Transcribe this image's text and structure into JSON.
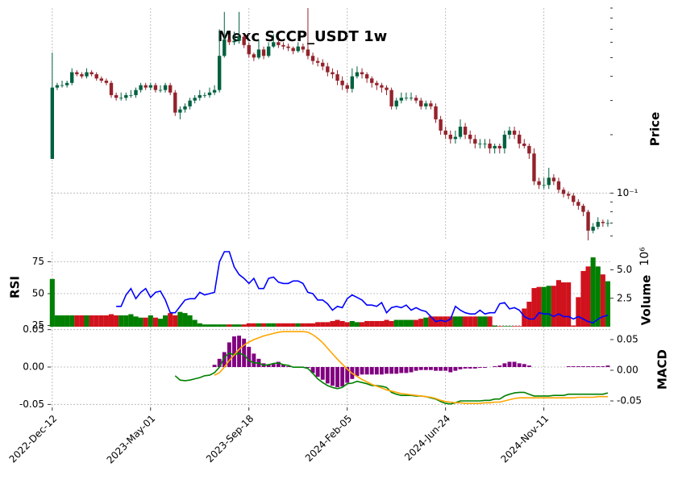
{
  "chart_data": {
    "type": "candlestick",
    "title": "Mexc SCCP_USDT 1w",
    "ylabel": "Price",
    "log_scale": true,
    "grid": true,
    "up_color": "#00613f",
    "down_color": "#93232c",
    "xlim": [
      -0.3,
      113.5
    ],
    "xticks": [
      {
        "value": 0,
        "label": "2022-Dec-12"
      },
      {
        "value": 20,
        "label": "2023-May-01"
      },
      {
        "value": 40,
        "label": "2023-Sep-18"
      },
      {
        "value": 60,
        "label": "2024-Feb-05"
      },
      {
        "value": 80,
        "label": "2024-Jun-24"
      },
      {
        "value": 100,
        "label": "2024-Nov-11"
      }
    ],
    "ylim": [
      0.057,
      0.9
    ],
    "yticks": [
      {
        "value": 0.1,
        "label": "10⁻¹"
      }
    ],
    "yminorticks": [
      0.06,
      0.07,
      0.08,
      0.09,
      0.2,
      0.3,
      0.4,
      0.5,
      0.6,
      0.7,
      0.8,
      0.9
    ],
    "open": [
      0.15,
      0.35,
      0.36,
      0.36,
      0.37,
      0.42,
      0.41,
      0.4,
      0.42,
      0.41,
      0.39,
      0.38,
      0.37,
      0.32,
      0.31,
      0.31,
      0.32,
      0.32,
      0.34,
      0.36,
      0.35,
      0.36,
      0.34,
      0.34,
      0.36,
      0.33,
      0.26,
      0.27,
      0.28,
      0.3,
      0.31,
      0.32,
      0.32,
      0.33,
      0.34,
      0.51,
      0.62,
      0.6,
      0.61,
      0.64,
      0.58,
      0.52,
      0.5,
      0.55,
      0.51,
      0.57,
      0.6,
      0.58,
      0.57,
      0.56,
      0.54,
      0.57,
      0.55,
      0.51,
      0.48,
      0.47,
      0.45,
      0.42,
      0.41,
      0.38,
      0.36,
      0.345,
      0.4,
      0.42,
      0.41,
      0.39,
      0.37,
      0.36,
      0.35,
      0.34,
      0.28,
      0.3,
      0.31,
      0.31,
      0.31,
      0.3,
      0.28,
      0.29,
      0.28,
      0.24,
      0.21,
      0.2,
      0.19,
      0.195,
      0.22,
      0.2,
      0.19,
      0.18,
      0.18,
      0.18,
      0.17,
      0.175,
      0.17,
      0.2,
      0.21,
      0.2,
      0.18,
      0.175,
      0.16,
      0.115,
      0.11,
      0.11,
      0.12,
      0.115,
      0.104,
      0.099,
      0.097,
      0.09,
      0.086,
      0.08,
      0.064,
      0.067,
      0.071,
      0.07
    ],
    "high": [
      0.53,
      0.37,
      0.38,
      0.38,
      0.44,
      0.43,
      0.42,
      0.44,
      0.43,
      0.42,
      0.4,
      0.39,
      0.38,
      0.33,
      0.33,
      0.33,
      0.34,
      0.35,
      0.37,
      0.37,
      0.37,
      0.37,
      0.36,
      0.37,
      0.37,
      0.34,
      0.28,
      0.29,
      0.31,
      0.32,
      0.34,
      0.33,
      0.35,
      0.36,
      0.7,
      0.86,
      0.66,
      0.68,
      0.86,
      0.66,
      0.6,
      0.53,
      0.62,
      0.57,
      0.6,
      0.66,
      0.62,
      0.6,
      0.59,
      0.57,
      0.6,
      0.59,
      0.9,
      0.53,
      0.5,
      0.49,
      0.47,
      0.44,
      0.43,
      0.4,
      0.37,
      0.44,
      0.45,
      0.44,
      0.42,
      0.4,
      0.38,
      0.37,
      0.36,
      0.35,
      0.31,
      0.33,
      0.33,
      0.33,
      0.32,
      0.31,
      0.3,
      0.3,
      0.29,
      0.25,
      0.22,
      0.21,
      0.21,
      0.24,
      0.23,
      0.21,
      0.2,
      0.19,
      0.19,
      0.19,
      0.18,
      0.18,
      0.21,
      0.22,
      0.22,
      0.21,
      0.19,
      0.18,
      0.17,
      0.12,
      0.12,
      0.135,
      0.125,
      0.12,
      0.107,
      0.102,
      0.1,
      0.093,
      0.088,
      0.082,
      0.07,
      0.075,
      0.073,
      0.073
    ],
    "low": [
      0.15,
      0.34,
      0.35,
      0.35,
      0.36,
      0.4,
      0.39,
      0.39,
      0.4,
      0.38,
      0.37,
      0.36,
      0.31,
      0.3,
      0.3,
      0.3,
      0.31,
      0.31,
      0.33,
      0.34,
      0.34,
      0.33,
      0.33,
      0.33,
      0.32,
      0.25,
      0.24,
      0.26,
      0.27,
      0.29,
      0.3,
      0.31,
      0.31,
      0.32,
      0.33,
      0.5,
      0.58,
      0.58,
      0.59,
      0.56,
      0.5,
      0.48,
      0.49,
      0.49,
      0.5,
      0.56,
      0.56,
      0.55,
      0.54,
      0.52,
      0.53,
      0.53,
      0.49,
      0.46,
      0.45,
      0.43,
      0.4,
      0.39,
      0.36,
      0.34,
      0.33,
      0.33,
      0.39,
      0.39,
      0.37,
      0.35,
      0.34,
      0.33,
      0.32,
      0.27,
      0.27,
      0.29,
      0.3,
      0.3,
      0.29,
      0.27,
      0.27,
      0.27,
      0.23,
      0.2,
      0.19,
      0.18,
      0.18,
      0.19,
      0.19,
      0.18,
      0.17,
      0.17,
      0.17,
      0.16,
      0.16,
      0.16,
      0.16,
      0.19,
      0.19,
      0.17,
      0.17,
      0.15,
      0.11,
      0.105,
      0.105,
      0.105,
      0.11,
      0.1,
      0.095,
      0.093,
      0.086,
      0.082,
      0.076,
      0.057,
      0.062,
      0.065,
      0.067,
      0.067
    ],
    "close": [
      0.35,
      0.36,
      0.36,
      0.37,
      0.42,
      0.41,
      0.4,
      0.42,
      0.41,
      0.39,
      0.38,
      0.37,
      0.32,
      0.31,
      0.31,
      0.32,
      0.32,
      0.34,
      0.36,
      0.35,
      0.36,
      0.34,
      0.34,
      0.36,
      0.33,
      0.26,
      0.27,
      0.28,
      0.3,
      0.31,
      0.32,
      0.32,
      0.33,
      0.34,
      0.51,
      0.62,
      0.6,
      0.61,
      0.64,
      0.58,
      0.52,
      0.5,
      0.55,
      0.51,
      0.57,
      0.6,
      0.58,
      0.57,
      0.56,
      0.54,
      0.57,
      0.55,
      0.51,
      0.48,
      0.47,
      0.45,
      0.42,
      0.41,
      0.38,
      0.36,
      0.345,
      0.4,
      0.42,
      0.41,
      0.39,
      0.37,
      0.36,
      0.35,
      0.34,
      0.28,
      0.3,
      0.31,
      0.31,
      0.31,
      0.3,
      0.28,
      0.29,
      0.28,
      0.24,
      0.21,
      0.2,
      0.19,
      0.195,
      0.22,
      0.2,
      0.19,
      0.18,
      0.18,
      0.18,
      0.17,
      0.175,
      0.17,
      0.2,
      0.21,
      0.2,
      0.18,
      0.175,
      0.16,
      0.115,
      0.11,
      0.11,
      0.12,
      0.115,
      0.104,
      0.099,
      0.097,
      0.09,
      0.086,
      0.08,
      0.064,
      0.067,
      0.071,
      0.07,
      0.07
    ],
    "volume": {
      "label": "Volume",
      "scale_label": "10⁶",
      "up_color": "#007f00",
      "down_color": "#d0121d",
      "ylim": [
        0,
        6.6
      ],
      "yticks": [
        {
          "value": 2.5,
          "label": "2.5"
        },
        {
          "value": 5,
          "label": "5.0"
        }
      ],
      "values": [
        4.2,
        1.0,
        1.0,
        1.0,
        1.0,
        1.0,
        1.0,
        1.0,
        1.0,
        1.0,
        1.0,
        1.0,
        1.1,
        1.0,
        1.0,
        1.0,
        1.1,
        0.9,
        0.8,
        0.8,
        1.0,
        0.8,
        0.7,
        1.0,
        1.2,
        1.0,
        1.3,
        1.2,
        1.0,
        0.6,
        0.3,
        0.2,
        0.2,
        0.2,
        0.2,
        0.2,
        0.2,
        0.2,
        0.2,
        0.2,
        0.3,
        0.3,
        0.3,
        0.3,
        0.3,
        0.3,
        0.3,
        0.3,
        0.3,
        0.3,
        0.3,
        0.3,
        0.3,
        0.3,
        0.4,
        0.4,
        0.4,
        0.5,
        0.6,
        0.5,
        0.4,
        0.5,
        0.4,
        0.4,
        0.5,
        0.5,
        0.5,
        0.5,
        0.6,
        0.5,
        0.6,
        0.6,
        0.6,
        0.6,
        0.6,
        0.7,
        0.8,
        0.9,
        0.9,
        0.9,
        0.9,
        0.9,
        0.9,
        0.9,
        0.9,
        0.9,
        0.9,
        0.9,
        0.9,
        0.9,
        0.1,
        0.05,
        0.05,
        0.05,
        0.05,
        0.05,
        1.6,
        2.2,
        3.4,
        3.5,
        3.5,
        3.6,
        3.6,
        4.1,
        3.9,
        3.9,
        0.1,
        2.6,
        4.9,
        5.3,
        6.1,
        5.3,
        4.6,
        4.0
      ]
    },
    "rsi": {
      "label": "RSI",
      "color": "#0000ff",
      "ylim": [
        24,
        83
      ],
      "yticks": [
        25,
        50,
        75
      ],
      "values": [
        null,
        null,
        null,
        null,
        null,
        null,
        null,
        null,
        null,
        null,
        null,
        null,
        null,
        40,
        40,
        49,
        54,
        46,
        51,
        54,
        47,
        51,
        52,
        45,
        35,
        35,
        40,
        45,
        46,
        46,
        51,
        49,
        50,
        51,
        75,
        83,
        83,
        71,
        65,
        62,
        58,
        62,
        54,
        54,
        62,
        63,
        59,
        58,
        58,
        60,
        60,
        58,
        51,
        50,
        45,
        45,
        42,
        37,
        40,
        39,
        46,
        49,
        47,
        45,
        41,
        41,
        40,
        43,
        35,
        39,
        40,
        39,
        41,
        37,
        39,
        37,
        36,
        32,
        28,
        29,
        28,
        30,
        40,
        37,
        35,
        34,
        34,
        37,
        34,
        35,
        35,
        42,
        43,
        38,
        39,
        37,
        32,
        30,
        30,
        35,
        34,
        34,
        32,
        34,
        32,
        32,
        30,
        32,
        30,
        28,
        27,
        30,
        32,
        33
      ]
    },
    "macd": {
      "label": "MACD",
      "ylim": [
        -0.054,
        0.054
      ],
      "yticks": [
        {
          "value": 0.05,
          "label": "0.05"
        },
        {
          "value": 0,
          "label": "0.00"
        },
        {
          "value": -0.05,
          "label": "-0.05"
        }
      ],
      "y2lim": [
        -0.0605,
        0.071
      ],
      "y2ticks": [
        {
          "value": 0.05,
          "label": "0.05"
        },
        {
          "value": 0,
          "label": "0.00"
        },
        {
          "value": -0.05,
          "label": "-0.05"
        }
      ],
      "histogram": {
        "color": "#800080",
        "values": [
          null,
          null,
          null,
          null,
          null,
          null,
          null,
          null,
          null,
          null,
          null,
          null,
          null,
          null,
          null,
          null,
          null,
          null,
          null,
          null,
          null,
          null,
          null,
          null,
          null,
          null,
          null,
          null,
          null,
          null,
          null,
          null,
          null,
          0.003,
          0.011,
          0.02,
          0.033,
          0.041,
          0.042,
          0.038,
          0.027,
          0.018,
          0.011,
          0.005,
          0.003,
          0.004,
          0.007,
          0.003,
          0.001,
          0,
          0,
          0,
          -0.001,
          -0.008,
          -0.013,
          -0.017,
          -0.022,
          -0.025,
          -0.027,
          -0.026,
          -0.021,
          -0.016,
          -0.012,
          -0.01,
          -0.01,
          -0.01,
          -0.01,
          -0.01,
          -0.009,
          -0.009,
          -0.009,
          -0.008,
          -0.008,
          -0.007,
          -0.005,
          -0.004,
          -0.004,
          -0.004,
          -0.005,
          -0.005,
          -0.005,
          -0.007,
          -0.005,
          -0.003,
          -0.002,
          -0.002,
          -0.002,
          -0.001,
          -0.001,
          0,
          0.001,
          0.002,
          0.005,
          0.007,
          0.007,
          0.005,
          0.004,
          0.002,
          0,
          0,
          0,
          0,
          0,
          0,
          0,
          0.001,
          0.001,
          0.001,
          0.001,
          0.001,
          0.001,
          0.001,
          0.001,
          0.002
        ]
      },
      "macd_line": {
        "color": "#008000",
        "axis": "y2",
        "values": [
          null,
          null,
          null,
          null,
          null,
          null,
          null,
          null,
          null,
          null,
          null,
          null,
          null,
          null,
          null,
          null,
          null,
          null,
          null,
          null,
          null,
          null,
          null,
          null,
          null,
          -0.009,
          -0.016,
          -0.017,
          -0.016,
          -0.014,
          -0.012,
          -0.009,
          -0.008,
          -0.004,
          0.005,
          0.021,
          0.028,
          0.025,
          0.028,
          0.025,
          0.016,
          0.012,
          0.012,
          0.008,
          0.009,
          0.011,
          0.012,
          0.009,
          0.008,
          0.005,
          0.005,
          0.005,
          0.003,
          -0.005,
          -0.014,
          -0.02,
          -0.025,
          -0.028,
          -0.03,
          -0.028,
          -0.022,
          -0.021,
          -0.018,
          -0.02,
          -0.022,
          -0.025,
          -0.025,
          -0.026,
          -0.028,
          -0.036,
          -0.039,
          -0.041,
          -0.041,
          -0.041,
          -0.042,
          -0.042,
          -0.043,
          -0.045,
          -0.047,
          -0.051,
          -0.054,
          -0.055,
          -0.053,
          -0.05,
          -0.05,
          -0.05,
          -0.05,
          -0.05,
          -0.049,
          -0.049,
          -0.047,
          -0.047,
          -0.042,
          -0.039,
          -0.037,
          -0.036,
          -0.036,
          -0.039,
          -0.042,
          -0.042,
          -0.042,
          -0.042,
          -0.041,
          -0.041,
          -0.041,
          -0.039,
          -0.039,
          -0.039,
          -0.039,
          -0.039,
          -0.039,
          -0.039,
          -0.039,
          -0.037
        ]
      },
      "signal_line": {
        "color": "#ffa500",
        "axis": "y2",
        "values": [
          null,
          null,
          null,
          null,
          null,
          null,
          null,
          null,
          null,
          null,
          null,
          null,
          null,
          null,
          null,
          null,
          null,
          null,
          null,
          null,
          null,
          null,
          null,
          null,
          null,
          null,
          null,
          null,
          null,
          null,
          null,
          null,
          null,
          -0.008,
          -0.004,
          0.005,
          0.016,
          0.025,
          0.034,
          0.041,
          0.046,
          0.05,
          0.053,
          0.056,
          0.058,
          0.06,
          0.062,
          0.063,
          0.063,
          0.063,
          0.063,
          0.063,
          0.062,
          0.058,
          0.052,
          0.045,
          0.036,
          0.027,
          0.018,
          0.01,
          0.002,
          -0.005,
          -0.01,
          -0.015,
          -0.019,
          -0.023,
          -0.026,
          -0.029,
          -0.032,
          -0.034,
          -0.036,
          -0.038,
          -0.039,
          -0.04,
          -0.041,
          -0.042,
          -0.043,
          -0.044,
          -0.046,
          -0.049,
          -0.051,
          -0.052,
          -0.053,
          -0.053,
          -0.054,
          -0.054,
          -0.054,
          -0.054,
          -0.053,
          -0.053,
          -0.052,
          -0.052,
          -0.05,
          -0.048,
          -0.046,
          -0.045,
          -0.045,
          -0.045,
          -0.045,
          -0.045,
          -0.045,
          -0.045,
          -0.045,
          -0.045,
          -0.045,
          -0.045,
          -0.045,
          -0.044,
          -0.044,
          -0.044,
          -0.044,
          -0.043,
          -0.043,
          -0.043
        ]
      }
    }
  }
}
